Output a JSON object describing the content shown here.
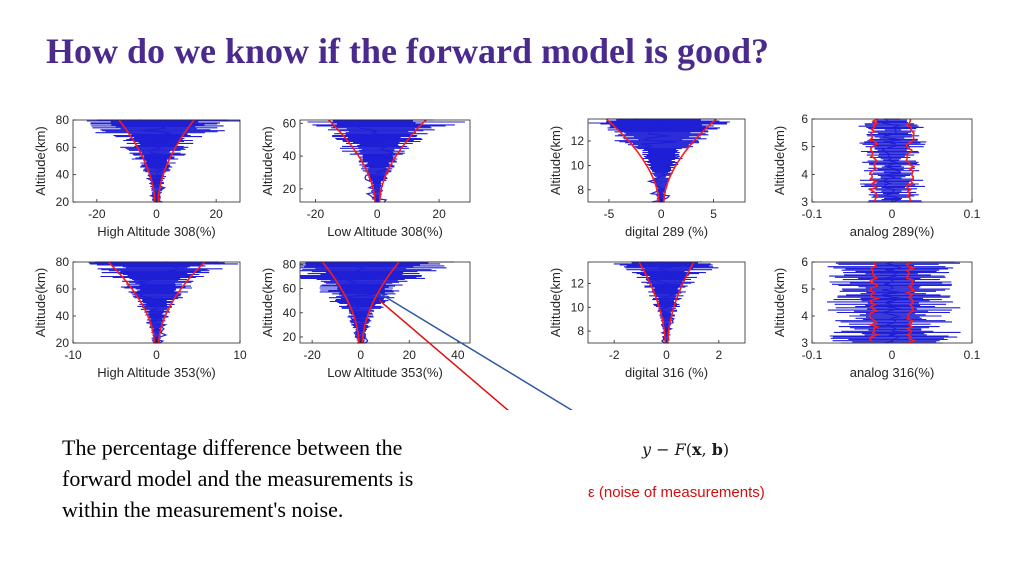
{
  "slide": {
    "title": "How do we know if the forward model is good?",
    "body_text": "The percentage difference between the forward model and the measurements is within the measurement's noise.",
    "equation": {
      "y": "y",
      "minus": "−",
      "F": "F",
      "open": "(",
      "x": "x",
      "comma": ", ",
      "b": "b",
      "close": ")"
    },
    "noise_label": "ε (noise of measurements)"
  },
  "colors": {
    "title": "#4b2a8e",
    "data": "#1f1fd6",
    "model": "#ff1a1a",
    "noise_arrow": "#e01010",
    "residual_arrow": "#2d5aa0"
  },
  "chart_data": [
    {
      "type": "line",
      "name": "high-308",
      "xlabel": "High Altitude 308(%)",
      "ylabel": "Altitude(km)",
      "xlim": [
        -28,
        28
      ],
      "ylim": [
        20,
        80
      ],
      "xticks": [
        -20,
        0,
        20
      ],
      "yticks": [
        20,
        40,
        60,
        80
      ],
      "envelope_end": 12,
      "noise_top": 26
    },
    {
      "type": "line",
      "name": "low-308",
      "xlabel": "Low Altitude 308(%)",
      "ylabel": "Altitude(km)",
      "xlim": [
        -25,
        30
      ],
      "ylim": [
        12,
        62
      ],
      "xticks": [
        -20,
        0,
        20
      ],
      "yticks": [
        20,
        40,
        60
      ],
      "envelope_end": 15,
      "noise_top": 26
    },
    {
      "type": "line",
      "name": "digital-289",
      "xlabel": "digital 289 (%)",
      "ylabel": "Altitude(km)",
      "xlim": [
        -7,
        8
      ],
      "ylim": [
        7,
        13.8
      ],
      "xticks": [
        -5,
        0,
        5
      ],
      "yticks": [
        8,
        10,
        12
      ],
      "envelope_end": 5,
      "noise_top": 7
    },
    {
      "type": "line",
      "name": "analog-289",
      "xlabel": "analog 289(%)",
      "ylabel": "Altitude(km)",
      "xlim": [
        -0.1,
        0.1
      ],
      "ylim": [
        3,
        6
      ],
      "xticks": [
        -0.1,
        0,
        0.1
      ],
      "yticks": [
        3,
        4,
        5,
        6
      ],
      "envelope_end": 0.02,
      "noise_top": 0.04
    },
    {
      "type": "line",
      "name": "high-353",
      "xlabel": "High Altitude 353(%)",
      "ylabel": "Altitude(km)",
      "xlim": [
        -10,
        10
      ],
      "ylim": [
        20,
        80
      ],
      "xticks": [
        -10,
        0,
        10
      ],
      "yticks": [
        20,
        40,
        60,
        80
      ],
      "envelope_end": 5.5,
      "noise_top": 9
    },
    {
      "type": "line",
      "name": "low-353",
      "xlabel": "Low Altitude 353(%)",
      "ylabel": "Altitude(km)",
      "xlim": [
        -25,
        45
      ],
      "ylim": [
        15,
        82
      ],
      "xticks": [
        -20,
        0,
        20,
        40
      ],
      "yticks": [
        20,
        40,
        60,
        80
      ],
      "envelope_end": 15,
      "noise_top": 40
    },
    {
      "type": "line",
      "name": "digital-316",
      "xlabel": "digital 316 (%)",
      "ylabel": "Altitude(km)",
      "xlim": [
        -3,
        3
      ],
      "ylim": [
        7,
        13.8
      ],
      "xticks": [
        -2,
        0,
        2
      ],
      "yticks": [
        8,
        10,
        12
      ],
      "envelope_end": 1,
      "noise_top": 2
    },
    {
      "type": "line",
      "name": "analog-316",
      "xlabel": "analog 316(%)",
      "ylabel": "Altitude(km)",
      "xlim": [
        -0.1,
        0.1
      ],
      "ylim": [
        3,
        6
      ],
      "xticks": [
        -0.1,
        0,
        0.1
      ],
      "yticks": [
        3,
        4,
        5,
        6
      ],
      "envelope_end": 0.02,
      "noise_top": 0.08
    }
  ]
}
